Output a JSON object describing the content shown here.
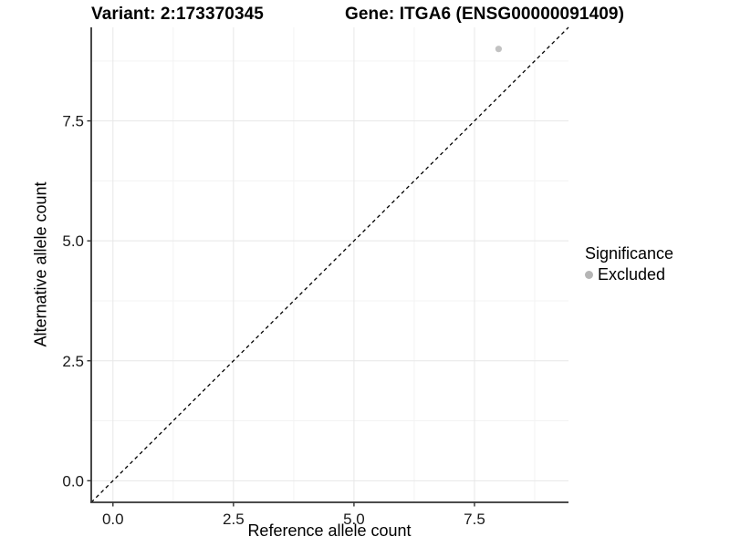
{
  "header": {
    "title_left": "Variant: 2:173370345",
    "title_right": "Gene: ITGA6 (ENSG00000091409)"
  },
  "chart_data": {
    "type": "scatter",
    "title": "Variant: 2:173370345  Gene: ITGA6 (ENSG00000091409)",
    "xlabel": "Reference allele count",
    "ylabel": "Alternative allele count",
    "xlim": [
      -0.45,
      9.45
    ],
    "ylim": [
      -0.45,
      9.45
    ],
    "x_ticks": [
      0.0,
      2.5,
      5.0,
      7.5
    ],
    "y_ticks": [
      0.0,
      2.5,
      5.0,
      7.5
    ],
    "x_tick_labels": [
      "0.0",
      "2.5",
      "5.0",
      "7.5"
    ],
    "y_tick_labels": [
      "0.0",
      "2.5",
      "5.0",
      "7.5"
    ],
    "x_minor_ticks": [
      1.25,
      3.75,
      6.25,
      8.75
    ],
    "y_minor_ticks": [
      1.25,
      3.75,
      6.25,
      8.75
    ],
    "grid": true,
    "points": [
      {
        "x": 8,
        "y": 9,
        "series": "Excluded"
      }
    ],
    "reference_line": {
      "kind": "identity",
      "style": "dashed",
      "color": "#000000"
    },
    "legend": {
      "title": "Significance",
      "position": "right",
      "entries": [
        {
          "label": "Excluded",
          "color": "#b5b5b5",
          "marker": "circle"
        }
      ]
    },
    "colors": {
      "point": "#c2c2c2",
      "grid_major": "#e7e7e7",
      "grid_minor": "#f3f3f3",
      "axis_line": "#333333",
      "tick_mark": "#333333",
      "tick_label": "#1a1a1a",
      "background": "#ffffff"
    }
  }
}
